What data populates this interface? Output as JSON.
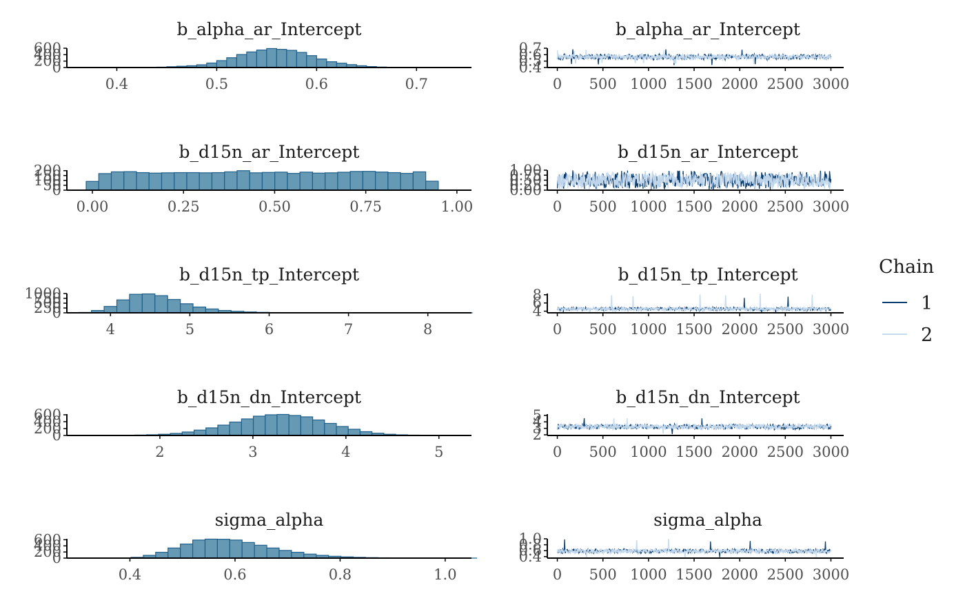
{
  "chart_data": [
    {
      "type": "bar",
      "title": "b_alpha_ar_Intercept",
      "x_ticks": [
        "0.4",
        "0.5",
        "0.6",
        "0.7"
      ],
      "x_tick_values": [
        0.4,
        0.5,
        0.6,
        0.7
      ],
      "xlim": [
        0.35,
        0.755
      ],
      "y_ticks": [
        "0",
        "200",
        "400",
        "600"
      ],
      "y_tick_values": [
        0,
        200,
        400,
        600
      ],
      "ylim": [
        0,
        600
      ],
      "bin_start": 0.43,
      "bin_width": 0.01,
      "values": [
        8,
        12,
        25,
        40,
        55,
        85,
        140,
        215,
        305,
        405,
        485,
        545,
        590,
        565,
        535,
        470,
        370,
        265,
        180,
        135,
        90,
        55,
        30,
        15,
        8
      ]
    },
    {
      "type": "line",
      "title": "b_alpha_ar_Intercept",
      "x_ticks": [
        "0",
        "500",
        "1000",
        "1500",
        "2000",
        "2500",
        "3000"
      ],
      "x_tick_values": [
        0,
        500,
        1000,
        1500,
        2000,
        2500,
        3000
      ],
      "xlim": [
        -110,
        3140
      ],
      "y_ticks": [
        "0.4",
        "0.5",
        "0.6",
        "0.7"
      ],
      "y_tick_values": [
        0.4,
        0.5,
        0.6,
        0.7
      ],
      "ylim": [
        0.4,
        0.7
      ],
      "series": [
        {
          "name": "1",
          "center": 0.565,
          "spread": 0.05,
          "min": 0.44,
          "max": 0.7
        },
        {
          "name": "2",
          "center": 0.565,
          "spread": 0.045,
          "min": 0.45,
          "max": 0.68
        }
      ]
    },
    {
      "type": "bar",
      "title": "b_d15n_ar_Intercept",
      "x_ticks": [
        "0.00",
        "0.25",
        "0.50",
        "0.75",
        "1.00"
      ],
      "x_tick_values": [
        0,
        0.25,
        0.5,
        0.75,
        1
      ],
      "xlim": [
        -0.07,
        1.04
      ],
      "y_ticks": [
        "0",
        "50",
        "100",
        "150",
        "200"
      ],
      "y_tick_values": [
        0,
        50,
        100,
        150,
        200
      ],
      "ylim": [
        0,
        205
      ],
      "bin_start": -0.017,
      "bin_width": 0.0345,
      "values": [
        90,
        170,
        188,
        190,
        180,
        175,
        178,
        180,
        180,
        178,
        180,
        188,
        200,
        178,
        182,
        185,
        172,
        185,
        175,
        178,
        184,
        192,
        193,
        186,
        180,
        172,
        188,
        92
      ]
    },
    {
      "type": "line",
      "title": "b_d15n_ar_Intercept",
      "x_ticks": [
        "0",
        "500",
        "1000",
        "1500",
        "2000",
        "2500",
        "3000"
      ],
      "x_tick_values": [
        0,
        500,
        1000,
        1500,
        2000,
        2500,
        3000
      ],
      "xlim": [
        -110,
        3140
      ],
      "y_ticks": [
        "0.00",
        "0.25",
        "0.50",
        "0.75",
        "1.00"
      ],
      "y_tick_values": [
        0,
        0.25,
        0.5,
        0.75,
        1
      ],
      "ylim": [
        0,
        1
      ],
      "series": [
        {
          "name": "1",
          "center": 0.5,
          "spread": 0.5,
          "min": 0,
          "max": 1
        },
        {
          "name": "2",
          "center": 0.5,
          "spread": 0.48,
          "min": 0.02,
          "max": 0.98
        }
      ]
    },
    {
      "type": "bar",
      "title": "b_d15n_tp_Intercept",
      "x_ticks": [
        "4",
        "5",
        "6",
        "7",
        "8"
      ],
      "x_tick_values": [
        4,
        5,
        6,
        7,
        8
      ],
      "xlim": [
        3.45,
        8.55
      ],
      "y_ticks": [
        "0",
        "250",
        "500",
        "750",
        "1000"
      ],
      "y_tick_values": [
        0,
        250,
        500,
        750,
        1000
      ],
      "ylim": [
        0,
        1000
      ],
      "bin_start": 3.6,
      "bin_width": 0.16,
      "values": [
        20,
        120,
        330,
        670,
        960,
        980,
        890,
        690,
        470,
        300,
        200,
        120,
        80,
        45,
        25,
        15,
        10,
        8,
        6,
        5,
        4,
        3,
        3,
        2,
        2,
        2,
        1,
        1,
        1,
        1,
        1
      ]
    },
    {
      "type": "line",
      "title": "b_d15n_tp_Intercept",
      "x_ticks": [
        "0",
        "500",
        "1000",
        "1500",
        "2000",
        "2500",
        "3000"
      ],
      "x_tick_values": [
        0,
        500,
        1000,
        1500,
        2000,
        2500,
        3000
      ],
      "xlim": [
        -110,
        3140
      ],
      "y_ticks": [
        "4",
        "6",
        "8"
      ],
      "y_tick_values": [
        4,
        6,
        8
      ],
      "ylim": [
        3.6,
        8.3
      ],
      "series": [
        {
          "name": "1",
          "center": 4.55,
          "spread": 0.45,
          "min": 3.7,
          "max": 7.6
        },
        {
          "name": "2",
          "center": 4.55,
          "spread": 0.45,
          "min": 3.7,
          "max": 8.3
        }
      ]
    },
    {
      "type": "bar",
      "title": "b_d15n_dn_Intercept",
      "x_ticks": [
        "2",
        "3",
        "4",
        "5"
      ],
      "x_tick_values": [
        2,
        3,
        4,
        5
      ],
      "xlim": [
        1.0,
        5.35
      ],
      "y_ticks": [
        "0",
        "200",
        "400",
        "600"
      ],
      "y_tick_values": [
        0,
        200,
        400,
        600
      ],
      "ylim": [
        0,
        620
      ],
      "bin_start": 1.22,
      "bin_width": 0.1275,
      "values": [
        2,
        3,
        5,
        8,
        12,
        20,
        35,
        60,
        100,
        155,
        220,
        300,
        390,
        480,
        560,
        600,
        610,
        580,
        540,
        450,
        350,
        260,
        180,
        110,
        65,
        35,
        18,
        10,
        5,
        3,
        2,
        1
      ]
    },
    {
      "type": "line",
      "title": "b_d15n_dn_Intercept",
      "x_ticks": [
        "0",
        "500",
        "1000",
        "1500",
        "2000",
        "2500",
        "3000"
      ],
      "x_tick_values": [
        0,
        500,
        1000,
        1500,
        2000,
        2500,
        3000
      ],
      "xlim": [
        -110,
        3140
      ],
      "y_ticks": [
        "2",
        "3",
        "4",
        "5"
      ],
      "y_tick_values": [
        2,
        3,
        4,
        5
      ],
      "ylim": [
        1.9,
        5.2
      ],
      "series": [
        {
          "name": "1",
          "center": 3.25,
          "spread": 0.5,
          "min": 2.1,
          "max": 4.8
        },
        {
          "name": "2",
          "center": 3.25,
          "spread": 0.45,
          "min": 2.2,
          "max": 4.6
        }
      ]
    },
    {
      "type": "bar",
      "title": "sigma_alpha",
      "x_ticks": [
        "0.4",
        "0.6",
        "0.8",
        "1.0"
      ],
      "x_tick_values": [
        0.4,
        0.6,
        0.8,
        1.0
      ],
      "xlim": [
        0.28,
        1.05
      ],
      "y_ticks": [
        "0",
        "200",
        "400",
        "600"
      ],
      "y_tick_values": [
        0,
        200,
        400,
        600
      ],
      "ylim": [
        0,
        630
      ],
      "bin_start": 0.355,
      "bin_width": 0.0235,
      "values": [
        2,
        8,
        25,
        90,
        190,
        330,
        460,
        590,
        620,
        615,
        590,
        510,
        420,
        330,
        250,
        190,
        130,
        90,
        60,
        40,
        25,
        15,
        10,
        6,
        4,
        3,
        2,
        1,
        1,
        1
      ]
    },
    {
      "type": "line",
      "title": "sigma_alpha",
      "x_ticks": [
        "0",
        "500",
        "1000",
        "1500",
        "2000",
        "2500",
        "3000"
      ],
      "x_tick_values": [
        0,
        500,
        1000,
        1500,
        2000,
        2500,
        3000
      ],
      "xlim": [
        -110,
        3140
      ],
      "y_ticks": [
        "0.4",
        "0.6",
        "0.8",
        "1.0"
      ],
      "y_tick_values": [
        0.4,
        0.6,
        0.8,
        1.0
      ],
      "ylim": [
        0.35,
        1.0
      ],
      "series": [
        {
          "name": "1",
          "center": 0.585,
          "spread": 0.085,
          "min": 0.38,
          "max": 0.98
        },
        {
          "name": "2",
          "center": 0.585,
          "spread": 0.085,
          "min": 0.38,
          "max": 1.0
        }
      ]
    }
  ],
  "legend": {
    "title": "Chain",
    "items": [
      {
        "label": "1",
        "color": "#0b3c6e"
      },
      {
        "label": "2",
        "color": "#c6dbef"
      }
    ]
  },
  "colors": {
    "hist_fill": "#6699b3",
    "hist_stroke": "#1f5f8b",
    "axis": "#000000",
    "chain1": "#0b3c6e",
    "chain2": "#c6dbef"
  }
}
